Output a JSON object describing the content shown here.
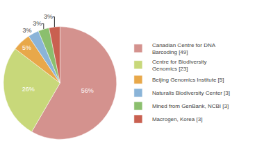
{
  "chart_data": {
    "type": "pie",
    "categories": [
      "Canadian Centre for DNA\nBarcoding [49]",
      "Centre for Biodiversity\nGenomics [23]",
      "Beijing Genomics Institute [5]",
      "Naturalis Biodiversity Center [3]",
      "Mined from GenBank, NCBI [3]",
      "Macrogen, Korea [3]"
    ],
    "values": [
      56,
      26,
      5,
      3,
      3,
      3
    ],
    "value_labels": [
      "56%",
      "26%",
      "5%",
      "3%",
      "3%",
      "3%"
    ],
    "colors": [
      "#d4928e",
      "#c8d87a",
      "#e8a84a",
      "#8ab4d8",
      "#8bbf6e",
      "#c96050"
    ],
    "data_labels": true,
    "legend": "right"
  }
}
